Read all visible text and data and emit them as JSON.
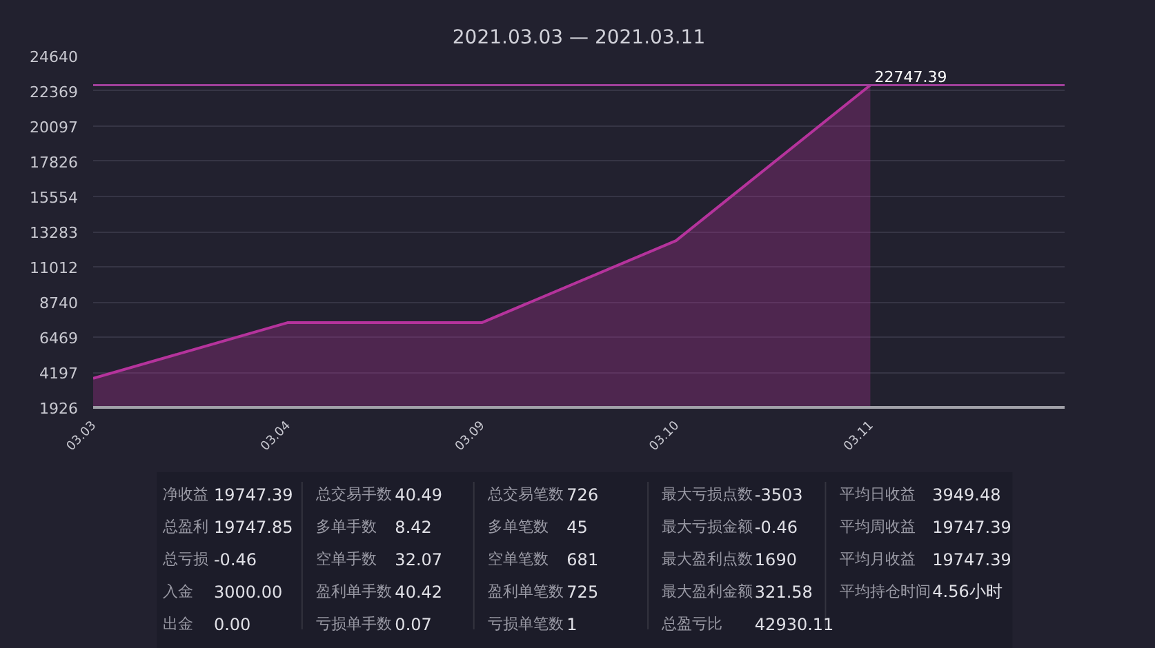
{
  "chart_data": [
    {
      "type": "area",
      "title": "2021.03.03 — 2021.03.11",
      "categories": [
        "03.03",
        "03.04",
        "03.09",
        "03.10",
        "03.11"
      ],
      "series": [
        {
          "color": "#b5339c",
          "values": [
            3800,
            7400,
            7400,
            12700,
            22747.39
          ],
          "value_labels": [
            null,
            null,
            null,
            null,
            "22747.39"
          ]
        }
      ],
      "ylim": [
        1926,
        24640
      ],
      "yticks": [
        1926,
        4197,
        6469,
        8740,
        11012,
        13283,
        15554,
        17826,
        20097,
        22369,
        24640
      ],
      "grid": "y",
      "ref_lines": [
        {
          "axis": "y",
          "value": 22747.39,
          "color": "#a0409a"
        }
      ]
    },
    {
      "type": "other",
      "annotations": [
        "净收益",
        "19747.39",
        "总盈利",
        "19747.85",
        "总亏损",
        "-0.46",
        "入金",
        "3000.00",
        "出金",
        "0.00",
        "总交易手数",
        "40.49",
        "多单手数",
        "8.42",
        "空单手数",
        "32.07",
        "盈利单手数",
        "40.42",
        "亏损单手数",
        "0.07",
        "总交易笔数",
        "726",
        "多单笔数",
        "45",
        "空单笔数",
        "681",
        "盈利单笔数",
        "725",
        "亏损单笔数",
        "1",
        "最大亏损点数",
        "-3503",
        "最大亏损金额",
        "-0.46",
        "最大盈利点数",
        "1690",
        "最大盈利金额",
        "321.58",
        "总盈亏比",
        "42930.11",
        "平均日收益",
        "3949.48",
        "平均周收益",
        "19747.39",
        "平均月收益",
        "19747.39",
        "平均持仓时间",
        "4.56小时"
      ]
    }
  ]
}
